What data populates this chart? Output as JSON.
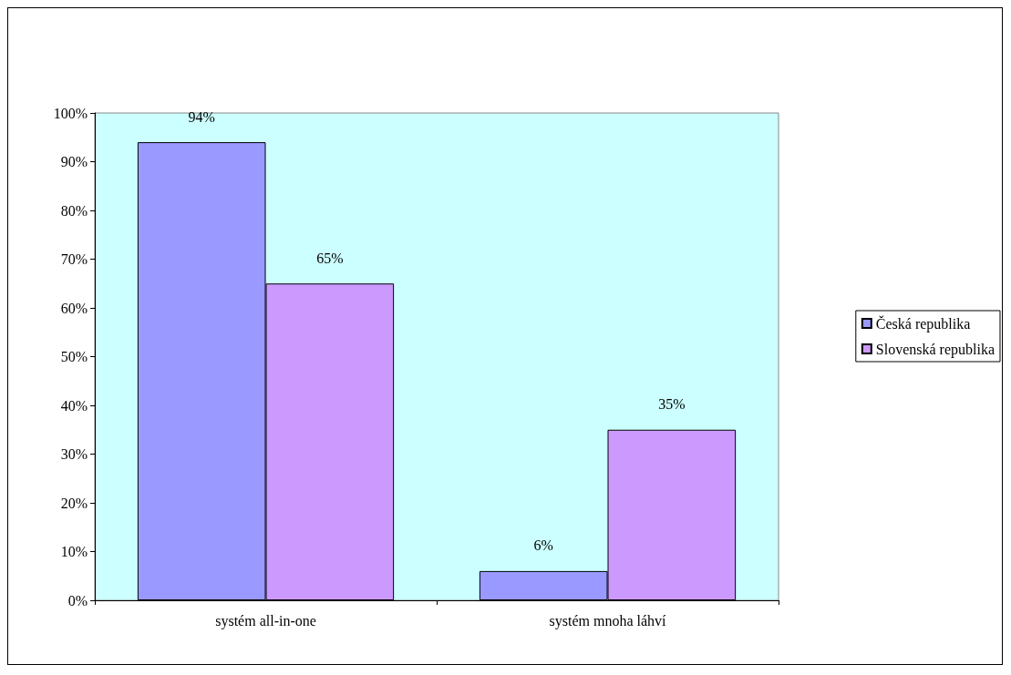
{
  "chart_data": {
    "type": "bar",
    "categories": [
      "systém all-in-one",
      "systém mnoha láhví"
    ],
    "series": [
      {
        "name": "Česká republika",
        "color": "#9999ff",
        "values": [
          94,
          6
        ],
        "value_labels": [
          "94%",
          "6%"
        ]
      },
      {
        "name": "Slovenská republika",
        "color": "#cc99ff",
        "values": [
          65,
          35
        ],
        "value_labels": [
          "65%",
          "35%"
        ]
      }
    ],
    "ylim": [
      0,
      100
    ],
    "yticks": [
      {
        "value": 0,
        "label": "0%"
      },
      {
        "value": 10,
        "label": "10%"
      },
      {
        "value": 20,
        "label": "20%"
      },
      {
        "value": 30,
        "label": "30%"
      },
      {
        "value": 40,
        "label": "40%"
      },
      {
        "value": 50,
        "label": "50%"
      },
      {
        "value": 60,
        "label": "60%"
      },
      {
        "value": 70,
        "label": "70%"
      },
      {
        "value": 80,
        "label": "80%"
      },
      {
        "value": 90,
        "label": "90%"
      },
      {
        "value": 100,
        "label": "100%"
      }
    ],
    "grid": false,
    "legend": "right"
  }
}
